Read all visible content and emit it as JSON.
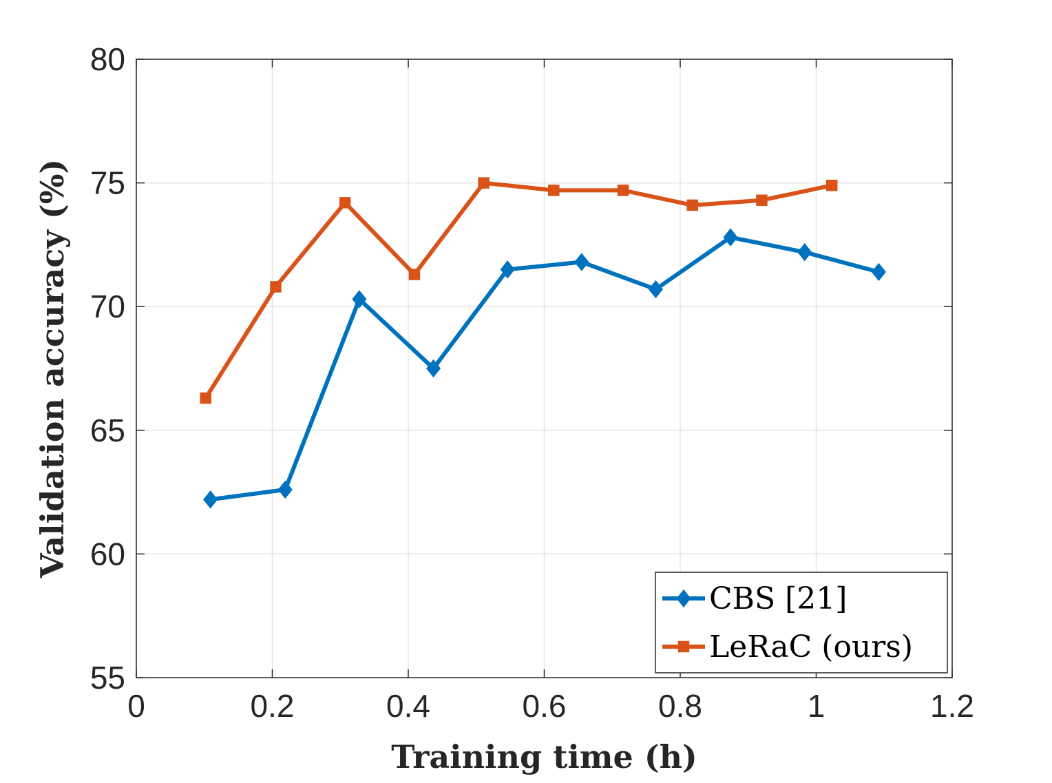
{
  "chart_data": {
    "type": "line",
    "title": "",
    "xlabel": "Training time (h)",
    "ylabel": "Validation accuracy (%)",
    "xlim": [
      0,
      1.2
    ],
    "ylim": [
      55,
      80
    ],
    "xticks": [
      0,
      0.2,
      0.4,
      0.6,
      0.8,
      1,
      1.2
    ],
    "xtick_labels": [
      "0",
      "0.2",
      "0.4",
      "0.6",
      "0.8",
      "1",
      "1.2"
    ],
    "yticks": [
      55,
      60,
      65,
      70,
      75,
      80
    ],
    "ytick_labels": [
      "55",
      "60",
      "65",
      "70",
      "75",
      "80"
    ],
    "grid": true,
    "legend_position": "bottom-right",
    "series": [
      {
        "name": "CBS [21]",
        "color": "#0072BD",
        "marker": "diamond",
        "x": [
          0.109,
          0.219,
          0.328,
          0.437,
          0.546,
          0.655,
          0.764,
          0.874,
          0.983,
          1.092
        ],
        "y": [
          62.2,
          62.6,
          70.3,
          67.5,
          71.5,
          71.8,
          70.7,
          72.8,
          72.2,
          71.4
        ]
      },
      {
        "name": "LeRaC (ours)",
        "color": "#D95319",
        "marker": "square",
        "x": [
          0.102,
          0.205,
          0.307,
          0.409,
          0.511,
          0.614,
          0.716,
          0.818,
          0.92,
          1.023
        ],
        "y": [
          66.3,
          70.8,
          74.2,
          71.3,
          75.0,
          74.7,
          74.7,
          74.1,
          74.3,
          74.9
        ]
      }
    ]
  }
}
